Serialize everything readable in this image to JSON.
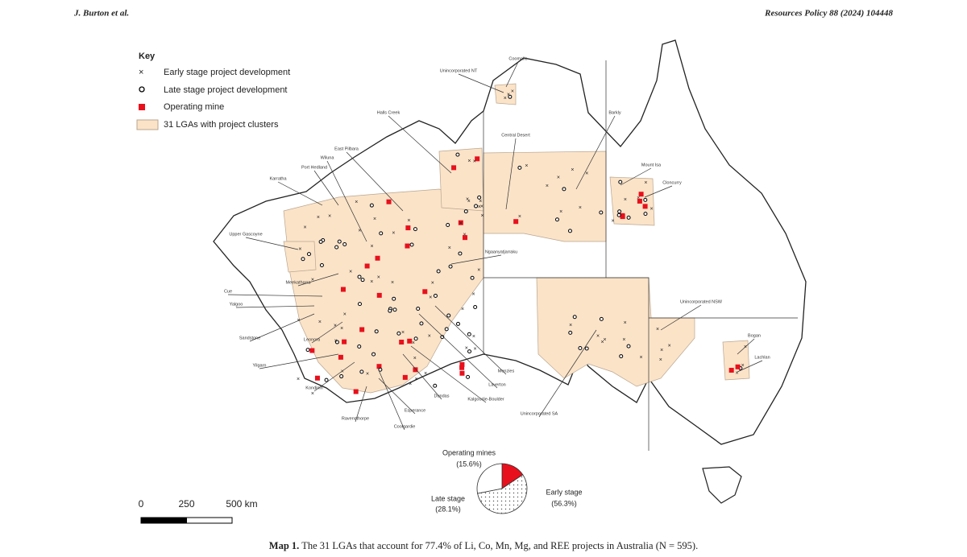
{
  "header": {
    "authors": "J. Burton et al.",
    "journal": "Resources Policy 88 (2024) 104448"
  },
  "key": {
    "title": "Key",
    "items": [
      "Early stage project development",
      "Late stage project development",
      "Operating mine",
      "31 LGAs with project clusters"
    ]
  },
  "lga_labels": [
    "Unincorporated NT",
    "Coomalie",
    "Halls Creek",
    "Central Desert",
    "Barkly",
    "East Pilbara",
    "Wiluna",
    "Port Hedland",
    "Karratha",
    "Mount Isa",
    "Cloncurry",
    "Upper Gascoyne",
    "Ngaanyatjarraku",
    "Meekatharra",
    "Cue",
    "Yalgoo",
    "Unincorporated NSW",
    "Bogan",
    "Sandstone",
    "Leonora",
    "Lachlan",
    "Yilgarn",
    "Menzies",
    "Laverton",
    "Kondinin",
    "Dundas",
    "Kalgoorlie-Boulder",
    "Esperance",
    "Unincorporated SA",
    "Ravensthorpe",
    "Coolgardie"
  ],
  "pie_chart": {
    "type": "pie",
    "categories": [
      "Operating mines",
      "Early stage",
      "Late stage"
    ],
    "values": [
      15.6,
      56.3,
      28.1
    ],
    "value_labels": [
      "(15.6%)",
      "(56.3%)",
      "(28.1%)"
    ]
  },
  "scale_bar": {
    "ticks": [
      0,
      250,
      {
        "value": 500,
        "label": "500 km"
      }
    ],
    "max": 500
  },
  "caption": {
    "label": "Map 1.",
    "text": "The 31 LGAs that account for 77.4% of Li, Co, Mn, Mg, and REE projects in Australia (N = 595)."
  }
}
